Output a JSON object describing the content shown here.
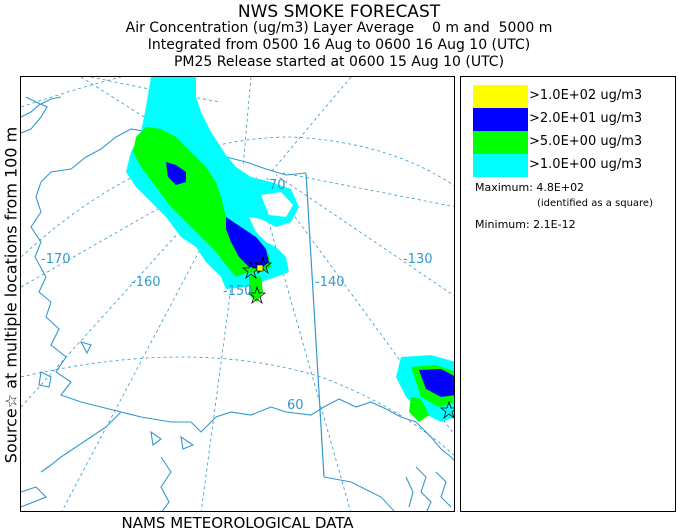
{
  "titles": {
    "line1": "NWS SMOKE FORECAST",
    "line2": "Air Concentration (ug/m3) Layer Average    0 m and  5000 m",
    "line3": "Integrated from 0500 16 Aug to 0600 16 Aug 10 (UTC)",
    "line4": "PM25 Release started at 0600 15 Aug 10 (UTC)"
  },
  "side_label": "Source☆  at multiple locations     from   100 m",
  "footer": "NAMS METEOROLOGICAL DATA",
  "map": {
    "longitude_labels": [
      "-170",
      "-160",
      "-150",
      "-140",
      "-130"
    ],
    "latitude_labels": [
      "70",
      "60"
    ],
    "colors": {
      "coast": "#3399cc",
      "graticule": "#3399cc",
      "label": "#3399cc",
      "level_yellow": "#ffff00",
      "level_blue": "#0000ff",
      "level_green": "#00ff00",
      "level_cyan": "#00ffff"
    }
  },
  "legend": {
    "levels": [
      {
        "label": ">1.0E+02 ug/m3",
        "color": "#ffff00"
      },
      {
        "label": ">2.0E+01 ug/m3",
        "color": "#0000ff"
      },
      {
        "label": ">5.0E+00 ug/m3",
        "color": "#00ff00"
      },
      {
        "label": ">1.0E+00 ug/m3",
        "color": "#00ffff"
      }
    ],
    "maximum": "Maximum: 4.8E+02",
    "max_note": "(identified as a square)",
    "minimum": "Minimum: 2.1E-12"
  }
}
